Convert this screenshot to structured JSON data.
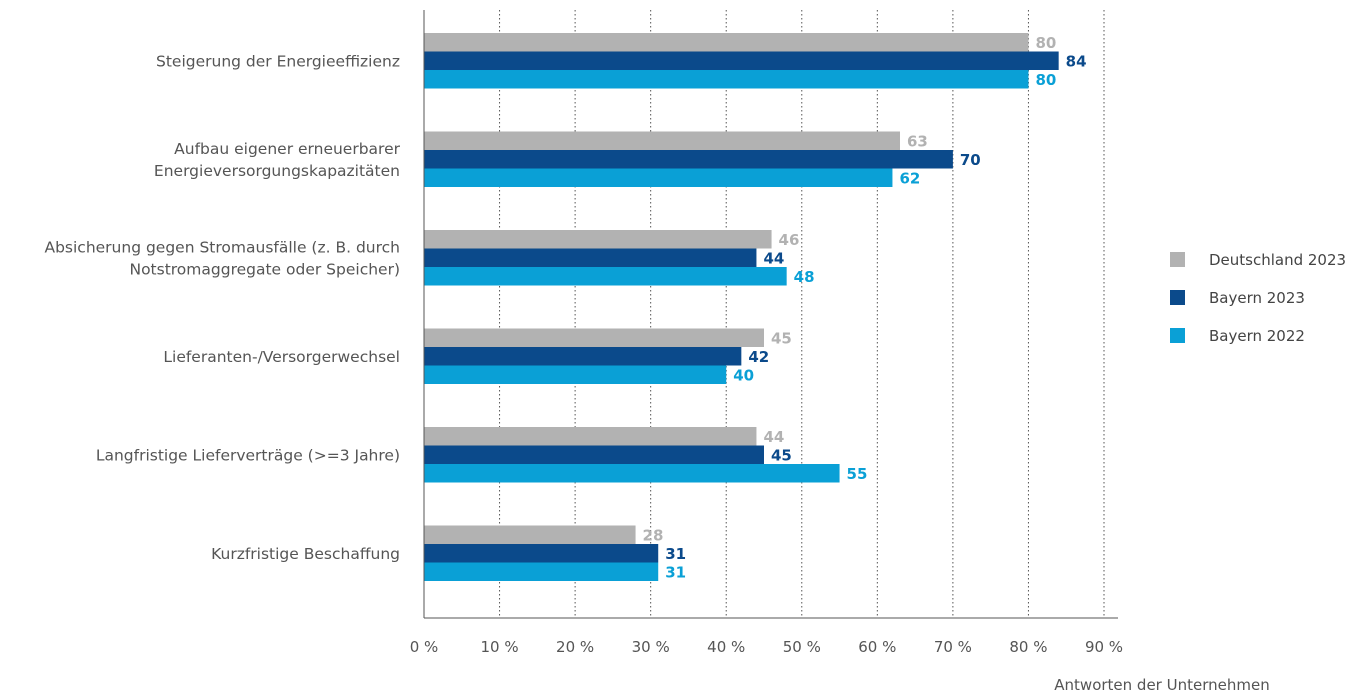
{
  "chart_data": {
    "type": "bar",
    "orientation": "horizontal",
    "categories": [
      [
        "Steigerung der Energieeffizienz"
      ],
      [
        "Aufbau eigener erneuerbarer",
        "Energieversorgungskapazitäten"
      ],
      [
        "Absicherung gegen Stromausfälle (z. B. durch",
        "Notstromaggregate oder Speicher)"
      ],
      [
        "Lieferanten-/Versorgerwechsel"
      ],
      [
        "Langfristige Lieferverträge (>=3 Jahre)"
      ],
      [
        "Kurzfristige Beschaffung"
      ]
    ],
    "series": [
      {
        "name": "Deutschland 2023",
        "color": "#b2b2b2",
        "values": [
          80,
          63,
          46,
          45,
          44,
          28
        ]
      },
      {
        "name": "Bayern 2023",
        "color": "#0b4a8b",
        "values": [
          84,
          70,
          44,
          42,
          45,
          31
        ]
      },
      {
        "name": "Bayern 2022",
        "color": "#0aa0d6",
        "values": [
          80,
          62,
          48,
          40,
          55,
          31
        ]
      }
    ],
    "xlim": [
      0,
      90
    ],
    "ticks": [
      {
        "value": 0,
        "label": "0 %"
      },
      {
        "value": 10,
        "label": "10 %"
      },
      {
        "value": 20,
        "label": "20 %"
      },
      {
        "value": 30,
        "label": "30 %"
      },
      {
        "value": 40,
        "label": "40 %"
      },
      {
        "value": 50,
        "label": "50 %"
      },
      {
        "value": 60,
        "label": "60 %"
      },
      {
        "value": 70,
        "label": "70 %"
      },
      {
        "value": 80,
        "label": "80 %"
      },
      {
        "value": 90,
        "label": "90 %"
      }
    ],
    "xlabel": "Antworten der Unternehmen",
    "grid": "vertical dotted",
    "legend_position": "right"
  }
}
